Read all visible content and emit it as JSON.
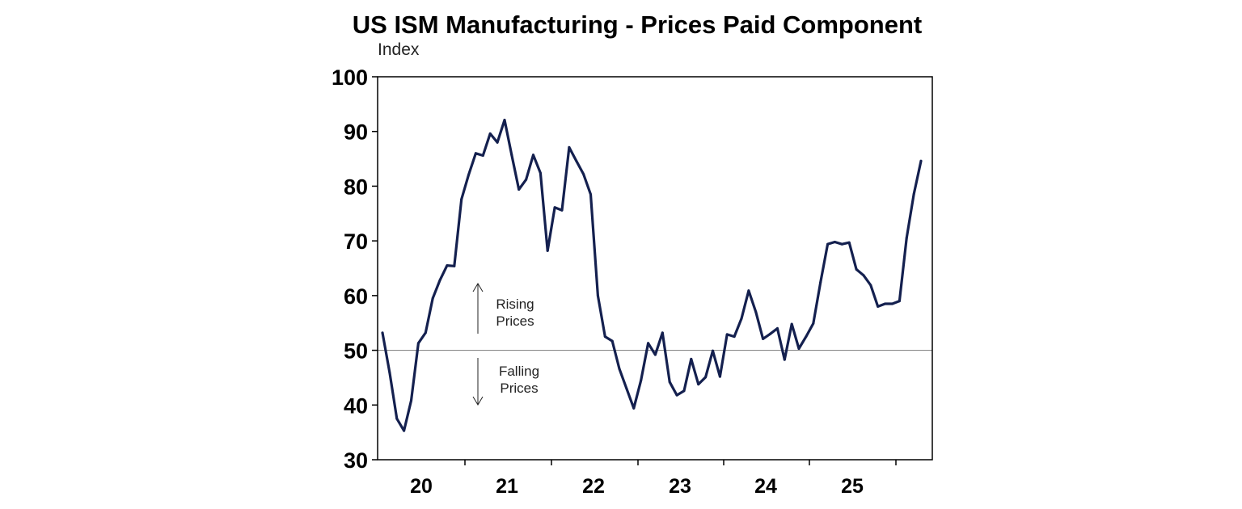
{
  "chart_data": {
    "type": "line",
    "title": "US ISM Manufacturing - Prices Paid Component",
    "ylabel": "Index",
    "xlabel": "",
    "ylim": [
      30,
      100
    ],
    "yticks": [
      "30",
      "40",
      "50",
      "60",
      "70",
      "80",
      "90",
      "100"
    ],
    "xtick_labels": [
      "20",
      "21",
      "22",
      "23",
      "24",
      "25"
    ],
    "reference_line": 50,
    "grid": false,
    "line_color": "#14204f",
    "annotations": {
      "rising": [
        "Rising",
        "Prices"
      ],
      "falling": [
        "Falling",
        "Prices"
      ]
    },
    "series": [
      {
        "values": [
          53.2,
          45.9,
          37.5,
          35.3,
          40.8,
          51.3,
          53.2,
          59.5,
          62.8,
          65.5,
          65.4,
          77.6,
          82.1,
          86.0,
          85.6,
          89.6,
          88.0,
          92.1,
          85.7,
          79.4,
          81.2,
          85.7,
          82.4,
          68.2,
          76.1,
          75.6,
          87.1,
          84.6,
          82.2,
          78.5,
          60.0,
          52.5,
          51.7,
          46.6,
          43.0,
          39.4,
          44.5,
          51.3,
          49.2,
          53.2,
          44.2,
          41.8,
          42.6,
          48.4,
          43.8,
          45.1,
          49.9,
          45.2,
          52.9,
          52.5,
          55.8,
          60.9,
          57.0,
          52.1,
          53.0,
          54.0,
          48.3,
          54.8,
          50.3,
          52.5,
          54.9,
          62.4,
          69.4,
          69.8,
          69.4,
          69.7,
          64.8,
          63.7,
          61.9,
          58.0,
          58.5,
          58.5,
          59.0,
          70.5,
          78.5,
          84.6
        ]
      }
    ]
  }
}
